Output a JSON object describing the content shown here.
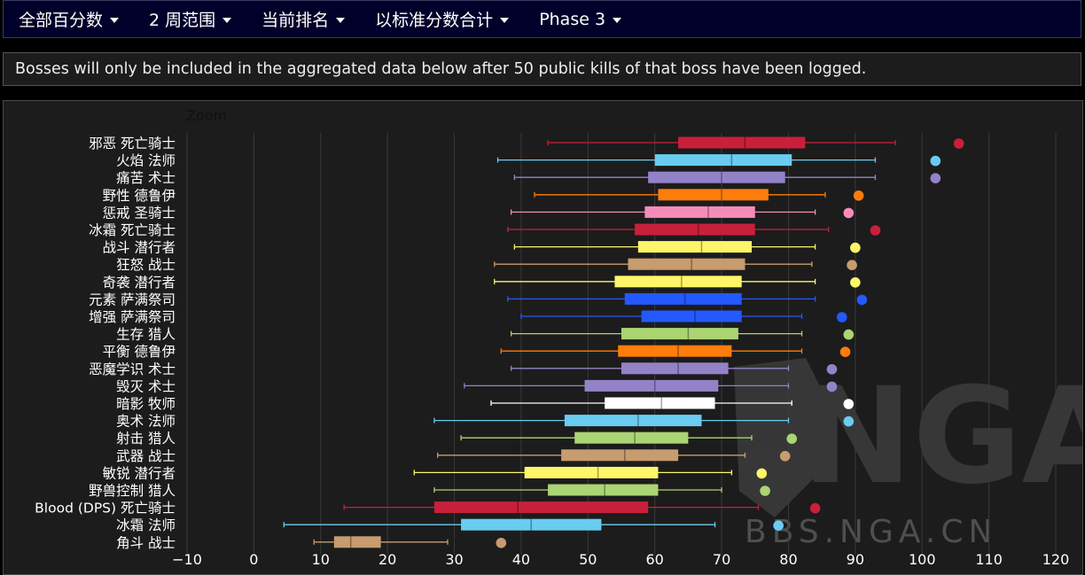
{
  "menus": [
    {
      "label": "全部百分数"
    },
    {
      "label": "2 周范围"
    },
    {
      "label": "当前排名"
    },
    {
      "label": "以标准分数合计"
    },
    {
      "label": "Phase 3"
    }
  ],
  "notice_text": "Bosses will only be included in the aggregated data below after 50 public kills of that boss have been logged.",
  "zoom_label": "Zoom",
  "watermark": {
    "logo": "NGA",
    "url": "BBS.NGA.CN"
  },
  "chart_data": {
    "type": "boxplot",
    "orientation": "horizontal",
    "xlim": [
      -10,
      120
    ],
    "xticks": [
      -10,
      0,
      10,
      20,
      30,
      40,
      50,
      60,
      70,
      80,
      90,
      100,
      110,
      120
    ],
    "grid": true,
    "series": [
      {
        "name": "邪恶 死亡骑士",
        "color": "#c8203a",
        "min": 44,
        "q1": 63.5,
        "median": 73.5,
        "q3": 82.5,
        "max": 96,
        "outlier": 105.5
      },
      {
        "name": "火焰 法师",
        "color": "#69ccf0",
        "min": 36.5,
        "q1": 60,
        "median": 71.5,
        "q3": 80.5,
        "max": 93,
        "outlier": 102
      },
      {
        "name": "痛苦 术士",
        "color": "#9482c9",
        "min": 39,
        "q1": 59,
        "median": 70,
        "q3": 79.5,
        "max": 93,
        "outlier": 102
      },
      {
        "name": "野性 德鲁伊",
        "color": "#ff7d0a",
        "min": 42,
        "q1": 60.5,
        "median": 70,
        "q3": 77,
        "max": 85.5,
        "outlier": 90.5
      },
      {
        "name": "惩戒 圣骑士",
        "color": "#f58cba",
        "min": 38.5,
        "q1": 58.5,
        "median": 68,
        "q3": 75,
        "max": 84,
        "outlier": 89
      },
      {
        "name": "冰霜 死亡骑士",
        "color": "#c8203a",
        "min": 38,
        "q1": 57,
        "median": 66.5,
        "q3": 75,
        "max": 86,
        "outlier": 93
      },
      {
        "name": "战斗 潜行者",
        "color": "#fff569",
        "min": 39,
        "q1": 57.5,
        "median": 67,
        "q3": 74.5,
        "max": 84,
        "outlier": 90
      },
      {
        "name": "狂怒 战士",
        "color": "#c79c6e",
        "min": 36,
        "q1": 56,
        "median": 65.5,
        "q3": 73.5,
        "max": 83.5,
        "outlier": 89.5
      },
      {
        "name": "奇袭 潜行者",
        "color": "#fff569",
        "min": 36,
        "q1": 54,
        "median": 64,
        "q3": 73,
        "max": 84,
        "outlier": 90
      },
      {
        "name": "元素 萨满祭司",
        "color": "#2459ff",
        "min": 38,
        "q1": 55.5,
        "median": 64.5,
        "q3": 73,
        "max": 84,
        "outlier": 91
      },
      {
        "name": "增强 萨满祭司",
        "color": "#2459ff",
        "min": 40,
        "q1": 58,
        "median": 66,
        "q3": 73,
        "max": 82,
        "outlier": 88
      },
      {
        "name": "生存 猎人",
        "color": "#abd473",
        "min": 38.5,
        "q1": 55,
        "median": 65,
        "q3": 72.5,
        "max": 82,
        "outlier": 89
      },
      {
        "name": "平衡 德鲁伊",
        "color": "#ff7d0a",
        "min": 37,
        "q1": 54.5,
        "median": 63.5,
        "q3": 71.5,
        "max": 82,
        "outlier": 88.5
      },
      {
        "name": "恶魔学识 术士",
        "color": "#9482c9",
        "min": 38.5,
        "q1": 55,
        "median": 63.5,
        "q3": 71,
        "max": 80,
        "outlier": 86.5
      },
      {
        "name": "毁灭 术士",
        "color": "#9482c9",
        "min": 31.5,
        "q1": 49.5,
        "median": 60,
        "q3": 69.5,
        "max": 80,
        "outlier": 86.5
      },
      {
        "name": "暗影 牧师",
        "color": "#ffffff",
        "min": 35.5,
        "q1": 52.5,
        "median": 61,
        "q3": 69,
        "max": 80.5,
        "outlier": 89
      },
      {
        "name": "奥术 法师",
        "color": "#69ccf0",
        "min": 27,
        "q1": 46.5,
        "median": 57.5,
        "q3": 67,
        "max": 80,
        "outlier": 89
      },
      {
        "name": "射击 猎人",
        "color": "#abd473",
        "min": 31,
        "q1": 48,
        "median": 57,
        "q3": 65,
        "max": 74.5,
        "outlier": 80.5
      },
      {
        "name": "武器 战士",
        "color": "#c79c6e",
        "min": 27.5,
        "q1": 46,
        "median": 55.5,
        "q3": 63.5,
        "max": 73.5,
        "outlier": 79.5
      },
      {
        "name": "敏锐 潜行者",
        "color": "#fff569",
        "min": 24,
        "q1": 40.5,
        "median": 51.5,
        "q3": 60.5,
        "max": 71.5,
        "outlier": 76
      },
      {
        "name": "野兽控制 猎人",
        "color": "#abd473",
        "min": 27,
        "q1": 44,
        "median": 52.5,
        "q3": 60.5,
        "max": 70,
        "outlier": 76.5
      },
      {
        "name": "Blood (DPS) 死亡骑士",
        "color": "#c8203a",
        "min": 13.5,
        "q1": 27,
        "median": 39.5,
        "q3": 59,
        "max": 75.5,
        "outlier": 84
      },
      {
        "name": "冰霜 法师",
        "color": "#69ccf0",
        "min": 4.5,
        "q1": 31,
        "median": 41.5,
        "q3": 52,
        "max": 69,
        "outlier": 78.5
      },
      {
        "name": "角斗 战士",
        "color": "#c79c6e",
        "min": 9,
        "q1": 12,
        "median": 14.5,
        "q3": 19,
        "max": 29,
        "outlier": 37
      }
    ]
  }
}
